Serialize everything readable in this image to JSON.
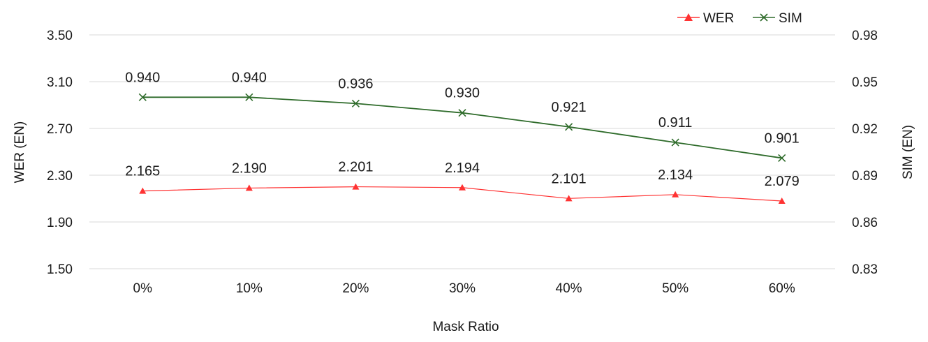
{
  "chart_data": {
    "type": "line",
    "categories": [
      "0%",
      "10%",
      "20%",
      "30%",
      "40%",
      "50%",
      "60%"
    ],
    "xlabel": "Mask Ratio",
    "ylabel_left": "WER (EN)",
    "ylabel_right": "SIM (EN)",
    "ylim_left": [
      1.5,
      3.5
    ],
    "yticks_left": [
      "1.50",
      "1.90",
      "2.30",
      "2.70",
      "3.10",
      "3.50"
    ],
    "ylim_right": [
      0.83,
      0.98
    ],
    "yticks_right": [
      "0.83",
      "0.86",
      "0.89",
      "0.92",
      "0.95",
      "0.98"
    ],
    "grid": true,
    "legend_position": "top-right",
    "series": [
      {
        "name": "WER",
        "axis": "left",
        "color": "#ff3333",
        "marker": "triangle",
        "values": [
          2.165,
          2.19,
          2.201,
          2.194,
          2.101,
          2.134,
          2.079
        ],
        "labels": [
          "2.165",
          "2.190",
          "2.201",
          "2.194",
          "2.101",
          "2.134",
          "2.079"
        ]
      },
      {
        "name": "SIM",
        "axis": "right",
        "color": "#2e6b2a",
        "marker": "x",
        "values": [
          0.94,
          0.94,
          0.936,
          0.93,
          0.921,
          0.911,
          0.901
        ],
        "labels": [
          "0.940",
          "0.940",
          "0.936",
          "0.930",
          "0.921",
          "0.911",
          "0.901"
        ]
      }
    ]
  }
}
